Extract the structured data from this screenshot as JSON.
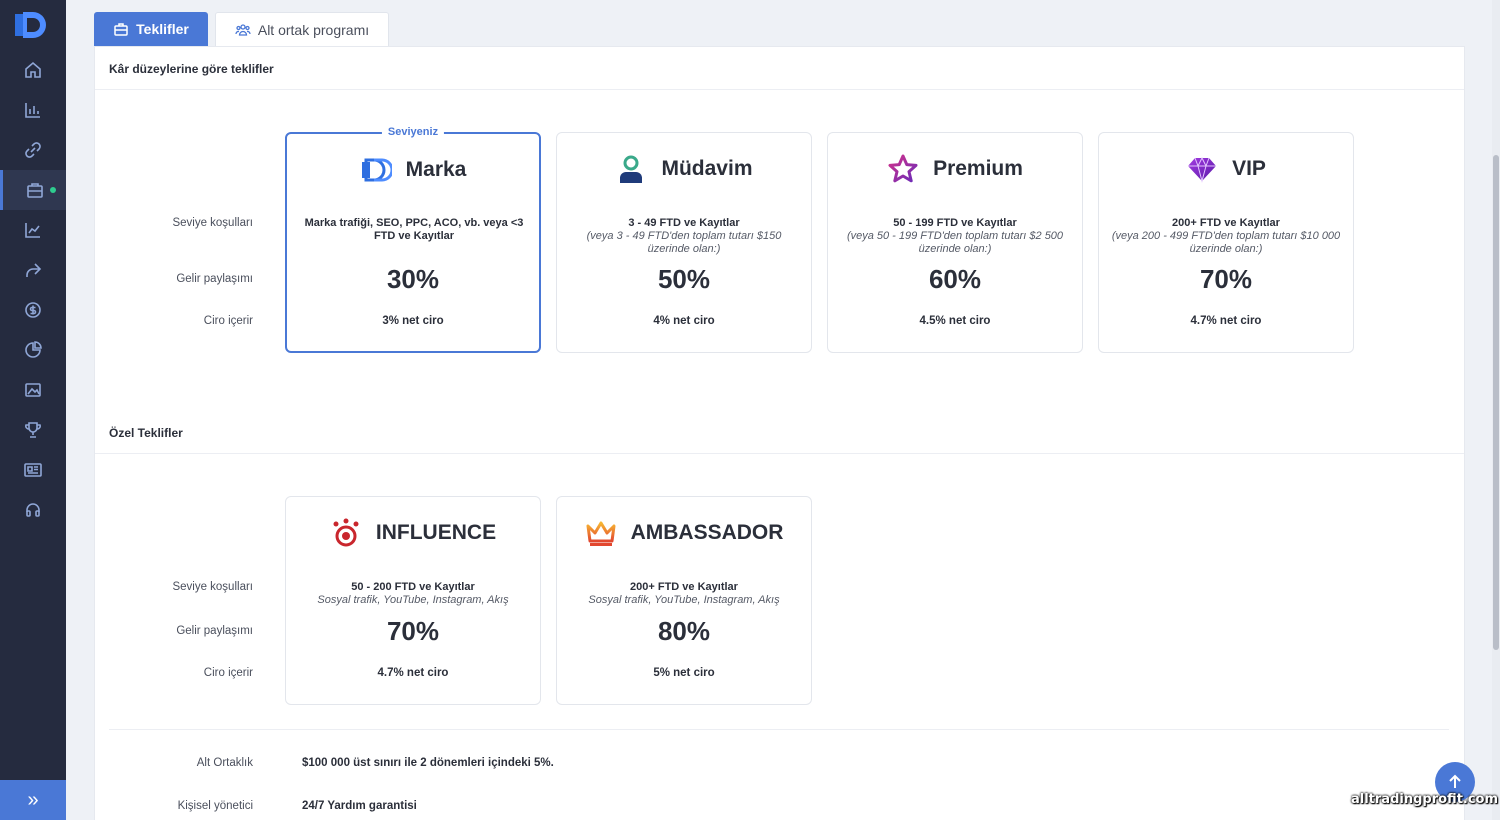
{
  "colors": {
    "accent": "#4a78d6",
    "sidebar": "#252b3f",
    "status_dot": "#2ecc8f"
  },
  "sidebar": {
    "items": [
      {
        "icon": "home-icon"
      },
      {
        "icon": "bar-chart-icon"
      },
      {
        "icon": "link-icon"
      },
      {
        "icon": "briefcase-icon",
        "active": true
      },
      {
        "icon": "trend-line-icon"
      },
      {
        "icon": "share-arrow-icon"
      },
      {
        "icon": "dollar-coin-icon"
      },
      {
        "icon": "pie-chart-icon"
      },
      {
        "icon": "image-icon"
      },
      {
        "icon": "trophy-icon"
      },
      {
        "icon": "newspaper-icon"
      },
      {
        "icon": "headset-icon"
      }
    ],
    "collapse_label": "»"
  },
  "tabs": [
    {
      "label": "Teklifler",
      "active": true,
      "icon": "briefcase-icon"
    },
    {
      "label": "Alt ortak programı",
      "active": false,
      "icon": "users-icon"
    }
  ],
  "profit_levels": {
    "title": "Kâr düzeylerine göre teklifler",
    "row_labels": [
      "Seviye koşulları",
      "Gelir paylaşımı",
      "Ciro içerir"
    ],
    "current_badge": "Seviyeniz",
    "cards": [
      {
        "name": "Marka",
        "icon": "marka-logo-icon",
        "cond_main": "Marka trafiği, SEO, PPC, ACO, vb. veya <3 FTD ve Kayıtlar",
        "cond_sub": "",
        "share": "30%",
        "turnover": "3% net ciro"
      },
      {
        "name": "Müdavim",
        "icon": "user-icon",
        "cond_main": "3 - 49 FTD ve Kayıtlar",
        "cond_sub": "(veya 3 - 49 FTD'den toplam tutarı $150 üzerinde olan:)",
        "share": "50%",
        "turnover": "4% net ciro"
      },
      {
        "name": "Premium",
        "icon": "star-icon",
        "cond_main": "50 - 199 FTD ve Kayıtlar",
        "cond_sub": "(veya 50 - 199 FTD'den toplam tutarı $2 500 üzerinde olan:)",
        "share": "60%",
        "turnover": "4.5% net ciro"
      },
      {
        "name": "VIP",
        "icon": "diamond-icon",
        "cond_main": "200+ FTD ve Kayıtlar",
        "cond_sub": "(veya 200 - 499 FTD'den toplam tutarı $10 000 üzerinde olan:)",
        "share": "70%",
        "turnover": "4.7% net ciro"
      }
    ]
  },
  "special_offers": {
    "title": "Özel Teklifler",
    "row_labels": [
      "Seviye koşulları",
      "Gelir paylaşımı",
      "Ciro içerir"
    ],
    "cards": [
      {
        "name": "INFLUENCE",
        "icon": "influence-icon",
        "cond_main": "50 - 200 FTD ve Kayıtlar",
        "cond_sub": "Sosyal trafik, YouTube, Instagram, Akış",
        "share": "70%",
        "turnover": "4.7% net ciro"
      },
      {
        "name": "AMBASSADOR",
        "icon": "crown-icon",
        "cond_main": "200+ FTD ve Kayıtlar",
        "cond_sub": "Sosyal trafik, YouTube, Instagram, Akış",
        "share": "80%",
        "turnover": "5% net ciro"
      }
    ]
  },
  "extras": [
    {
      "label": "Alt Ortaklık",
      "value": "$100 000 üst sınırı ile 2 dönemleri içindeki 5%."
    },
    {
      "label": "Kişisel yönetici",
      "value": "24/7 Yardım garantisi"
    }
  ],
  "watermark": "alltradingprofit.com"
}
